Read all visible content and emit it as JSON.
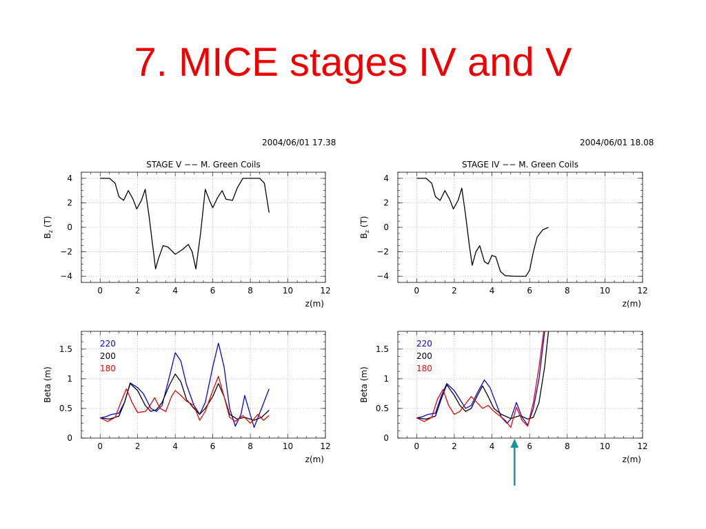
{
  "slide": {
    "title": "7. MICE stages IV and V",
    "stamp_left": "2004/06/01   17.38",
    "stamp_right": "2004/06/01   18.08",
    "accent_color": "#ee0000",
    "arrow_color": "#13989a"
  },
  "chart_data": [
    {
      "type": "line",
      "title": "STAGE V −− M. Green Coils",
      "xlabel": "z(m)",
      "ylabel": "B",
      "ylabel_sub": "z",
      "ylabel_unit": " (T)",
      "xlim": [
        -1,
        12
      ],
      "ylim": [
        -4.5,
        4.5
      ],
      "xticks": [
        0,
        2,
        4,
        6,
        8,
        10,
        12
      ],
      "yticks": [
        -4,
        -2,
        0,
        2,
        4
      ],
      "grid": true,
      "series": [
        {
          "color": "#000000",
          "points": [
            [
              0,
              4.0
            ],
            [
              0.5,
              4.0
            ],
            [
              0.8,
              3.6
            ],
            [
              1.0,
              2.5
            ],
            [
              1.25,
              2.2
            ],
            [
              1.5,
              3.0
            ],
            [
              1.75,
              2.3
            ],
            [
              1.95,
              1.5
            ],
            [
              2.2,
              2.2
            ],
            [
              2.4,
              3.1
            ],
            [
              2.6,
              1.0
            ],
            [
              2.8,
              -1.5
            ],
            [
              2.95,
              -3.4
            ],
            [
              3.1,
              -2.6
            ],
            [
              3.35,
              -1.5
            ],
            [
              3.6,
              -1.6
            ],
            [
              4.0,
              -2.2
            ],
            [
              4.4,
              -1.8
            ],
            [
              4.7,
              -1.4
            ],
            [
              4.9,
              -2.0
            ],
            [
              5.1,
              -3.4
            ],
            [
              5.35,
              -0.5
            ],
            [
              5.6,
              3.1
            ],
            [
              5.85,
              2.1
            ],
            [
              6.0,
              1.6
            ],
            [
              6.25,
              2.4
            ],
            [
              6.5,
              3.0
            ],
            [
              6.7,
              2.3
            ],
            [
              7.05,
              2.2
            ],
            [
              7.3,
              3.2
            ],
            [
              7.6,
              4.0
            ],
            [
              8.5,
              4.0
            ],
            [
              8.75,
              3.6
            ],
            [
              9.0,
              1.2
            ]
          ]
        }
      ]
    },
    {
      "type": "line",
      "title": "STAGE IV −− M. Green Coils",
      "xlabel": "z(m)",
      "ylabel": "B",
      "ylabel_sub": "z",
      "ylabel_unit": " (T)",
      "xlim": [
        -1,
        12
      ],
      "ylim": [
        -4.5,
        4.5
      ],
      "xticks": [
        0,
        2,
        4,
        6,
        8,
        10,
        12
      ],
      "yticks": [
        -4,
        -2,
        0,
        2,
        4
      ],
      "grid": true,
      "series": [
        {
          "color": "#000000",
          "points": [
            [
              0,
              4.0
            ],
            [
              0.5,
              4.0
            ],
            [
              0.8,
              3.6
            ],
            [
              1.0,
              2.5
            ],
            [
              1.25,
              2.2
            ],
            [
              1.5,
              3.0
            ],
            [
              1.75,
              2.3
            ],
            [
              1.95,
              1.5
            ],
            [
              2.2,
              2.2
            ],
            [
              2.4,
              3.2
            ],
            [
              2.6,
              1.0
            ],
            [
              2.8,
              -1.5
            ],
            [
              2.95,
              -3.1
            ],
            [
              3.15,
              -2.0
            ],
            [
              3.35,
              -1.5
            ],
            [
              3.6,
              -2.8
            ],
            [
              3.8,
              -3.0
            ],
            [
              4.0,
              -2.3
            ],
            [
              4.2,
              -2.4
            ],
            [
              4.45,
              -3.6
            ],
            [
              4.7,
              -3.95
            ],
            [
              5.2,
              -4.0
            ],
            [
              5.8,
              -4.0
            ],
            [
              6.0,
              -3.5
            ],
            [
              6.2,
              -2.0
            ],
            [
              6.4,
              -0.8
            ],
            [
              6.7,
              -0.2
            ],
            [
              7.0,
              0.0
            ]
          ]
        }
      ]
    },
    {
      "type": "line",
      "xlabel": "z(m)",
      "ylabel": "Beta (m)",
      "xlim": [
        -1,
        12
      ],
      "ylim": [
        0,
        1.8
      ],
      "xticks": [
        0,
        2,
        4,
        6,
        8,
        10,
        12
      ],
      "yticks": [
        0,
        0.5,
        1,
        1.5
      ],
      "ytick_labels": [
        "0",
        "0.5",
        "1",
        "1.5"
      ],
      "grid": true,
      "legend": "top-left",
      "series": [
        {
          "name": "220",
          "color": "#0000ee",
          "points": [
            [
              0,
              0.34
            ],
            [
              0.3,
              0.36
            ],
            [
              0.6,
              0.4
            ],
            [
              1.0,
              0.42
            ],
            [
              1.3,
              0.6
            ],
            [
              1.6,
              0.93
            ],
            [
              2.0,
              0.85
            ],
            [
              2.3,
              0.75
            ],
            [
              2.7,
              0.5
            ],
            [
              3.0,
              0.45
            ],
            [
              3.3,
              0.55
            ],
            [
              3.7,
              1.05
            ],
            [
              4.0,
              1.44
            ],
            [
              4.3,
              1.3
            ],
            [
              4.6,
              0.9
            ],
            [
              5.0,
              0.55
            ],
            [
              5.3,
              0.4
            ],
            [
              5.6,
              0.6
            ],
            [
              6.0,
              1.2
            ],
            [
              6.3,
              1.6
            ],
            [
              6.6,
              1.2
            ],
            [
              6.9,
              0.5
            ],
            [
              7.2,
              0.2
            ],
            [
              7.5,
              0.4
            ],
            [
              7.7,
              0.72
            ],
            [
              7.9,
              0.5
            ],
            [
              8.2,
              0.18
            ],
            [
              8.6,
              0.5
            ],
            [
              9.0,
              0.83
            ]
          ]
        },
        {
          "name": "200",
          "color": "#000000",
          "points": [
            [
              0,
              0.34
            ],
            [
              0.5,
              0.32
            ],
            [
              1.0,
              0.37
            ],
            [
              1.3,
              0.6
            ],
            [
              1.6,
              0.92
            ],
            [
              2.0,
              0.8
            ],
            [
              2.4,
              0.55
            ],
            [
              2.7,
              0.45
            ],
            [
              3.0,
              0.48
            ],
            [
              3.3,
              0.6
            ],
            [
              3.7,
              0.9
            ],
            [
              4.0,
              1.08
            ],
            [
              4.3,
              0.95
            ],
            [
              4.6,
              0.65
            ],
            [
              5.0,
              0.5
            ],
            [
              5.3,
              0.4
            ],
            [
              5.6,
              0.5
            ],
            [
              6.0,
              0.7
            ],
            [
              6.3,
              0.92
            ],
            [
              6.6,
              0.7
            ],
            [
              6.9,
              0.4
            ],
            [
              7.3,
              0.32
            ],
            [
              7.7,
              0.35
            ],
            [
              8.2,
              0.3
            ],
            [
              8.6,
              0.35
            ],
            [
              9.0,
              0.47
            ]
          ]
        },
        {
          "name": "180",
          "color": "#ee0000",
          "points": [
            [
              0,
              0.34
            ],
            [
              0.4,
              0.28
            ],
            [
              0.8,
              0.35
            ],
            [
              1.1,
              0.6
            ],
            [
              1.4,
              0.83
            ],
            [
              1.7,
              0.6
            ],
            [
              2.0,
              0.43
            ],
            [
              2.4,
              0.45
            ],
            [
              2.6,
              0.52
            ],
            [
              2.9,
              0.68
            ],
            [
              3.2,
              0.5
            ],
            [
              3.5,
              0.45
            ],
            [
              3.8,
              0.7
            ],
            [
              4.0,
              0.8
            ],
            [
              4.3,
              0.72
            ],
            [
              4.6,
              0.62
            ],
            [
              5.0,
              0.55
            ],
            [
              5.3,
              0.3
            ],
            [
              5.6,
              0.45
            ],
            [
              6.0,
              0.8
            ],
            [
              6.3,
              1.04
            ],
            [
              6.6,
              0.7
            ],
            [
              6.9,
              0.35
            ],
            [
              7.2,
              0.28
            ],
            [
              7.6,
              0.38
            ],
            [
              8.0,
              0.25
            ],
            [
              8.4,
              0.4
            ],
            [
              8.7,
              0.3
            ],
            [
              9.0,
              0.38
            ]
          ]
        }
      ]
    },
    {
      "type": "line",
      "xlabel": "z(m)",
      "ylabel": "Beta (m)",
      "xlim": [
        -1,
        12
      ],
      "ylim": [
        0,
        1.8
      ],
      "xticks": [
        0,
        2,
        4,
        6,
        8,
        10,
        12
      ],
      "yticks": [
        0,
        0.5,
        1,
        1.5
      ],
      "ytick_labels": [
        "0",
        "0.5",
        "1",
        "1.5"
      ],
      "grid": true,
      "legend": "top-left",
      "annotation": {
        "type": "arrow",
        "x": 5.2
      },
      "series": [
        {
          "name": "220",
          "color": "#0000ee",
          "points": [
            [
              0,
              0.34
            ],
            [
              0.3,
              0.36
            ],
            [
              0.6,
              0.4
            ],
            [
              1.0,
              0.42
            ],
            [
              1.3,
              0.7
            ],
            [
              1.6,
              0.92
            ],
            [
              2.0,
              0.8
            ],
            [
              2.3,
              0.65
            ],
            [
              2.6,
              0.5
            ],
            [
              2.9,
              0.55
            ],
            [
              3.2,
              0.75
            ],
            [
              3.6,
              0.98
            ],
            [
              3.9,
              0.85
            ],
            [
              4.2,
              0.6
            ],
            [
              4.5,
              0.35
            ],
            [
              4.8,
              0.25
            ],
            [
              5.0,
              0.32
            ],
            [
              5.3,
              0.6
            ],
            [
              5.6,
              0.35
            ],
            [
              5.9,
              0.22
            ],
            [
              6.2,
              0.5
            ],
            [
              6.5,
              1.0
            ],
            [
              6.8,
              1.8
            ]
          ]
        },
        {
          "name": "200",
          "color": "#000000",
          "points": [
            [
              0,
              0.34
            ],
            [
              0.5,
              0.32
            ],
            [
              1.0,
              0.37
            ],
            [
              1.3,
              0.65
            ],
            [
              1.6,
              0.9
            ],
            [
              2.0,
              0.72
            ],
            [
              2.3,
              0.55
            ],
            [
              2.6,
              0.45
            ],
            [
              2.9,
              0.5
            ],
            [
              3.2,
              0.7
            ],
            [
              3.5,
              0.88
            ],
            [
              3.8,
              0.7
            ],
            [
              4.1,
              0.5
            ],
            [
              4.5,
              0.4
            ],
            [
              5.0,
              0.33
            ],
            [
              5.5,
              0.38
            ],
            [
              5.9,
              0.32
            ],
            [
              6.2,
              0.35
            ],
            [
              6.5,
              0.6
            ],
            [
              6.8,
              1.2
            ],
            [
              7.0,
              1.8
            ]
          ]
        },
        {
          "name": "180",
          "color": "#ee0000",
          "points": [
            [
              0,
              0.34
            ],
            [
              0.4,
              0.28
            ],
            [
              0.8,
              0.35
            ],
            [
              1.1,
              0.65
            ],
            [
              1.4,
              0.82
            ],
            [
              1.7,
              0.55
            ],
            [
              2.0,
              0.4
            ],
            [
              2.3,
              0.45
            ],
            [
              2.6,
              0.58
            ],
            [
              2.9,
              0.7
            ],
            [
              3.2,
              0.6
            ],
            [
              3.5,
              0.5
            ],
            [
              3.8,
              0.55
            ],
            [
              4.1,
              0.45
            ],
            [
              4.4,
              0.38
            ],
            [
              4.7,
              0.3
            ],
            [
              5.0,
              0.18
            ],
            [
              5.3,
              0.52
            ],
            [
              5.6,
              0.3
            ],
            [
              5.9,
              0.2
            ],
            [
              6.2,
              0.6
            ],
            [
              6.5,
              1.2
            ],
            [
              6.75,
              1.8
            ]
          ]
        }
      ]
    }
  ]
}
